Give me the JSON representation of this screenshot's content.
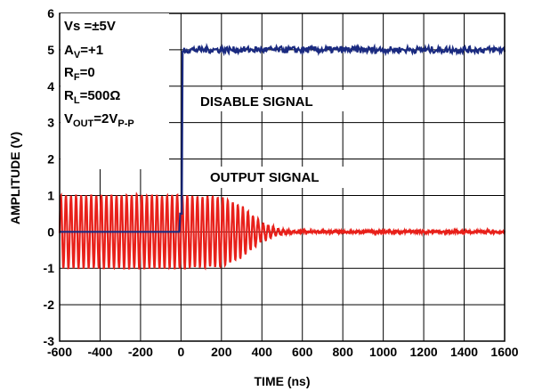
{
  "chart_data": {
    "type": "line",
    "xlabel": "TIME (ns)",
    "ylabel": "AMPLITUDE (V)",
    "xlim": [
      -600,
      1600
    ],
    "ylim": [
      -3,
      6
    ],
    "x_ticks": [
      "-600",
      "-400",
      "-200",
      "0",
      "200",
      "400",
      "600",
      "800",
      "1000",
      "1200",
      "1400",
      "1600"
    ],
    "y_ticks": [
      "-3",
      "-2",
      "-1",
      "0",
      "1",
      "2",
      "3",
      "4",
      "5",
      "6"
    ],
    "grid": true,
    "colors": {
      "disable": "#1a2a80",
      "output": "#e8201a"
    },
    "series": [
      {
        "name": "DISABLE SIGNAL",
        "x": [
          -600,
          -400,
          -200,
          -10,
          0,
          10,
          20,
          200,
          400,
          600,
          800,
          1000,
          1200,
          1400,
          1600
        ],
        "y": [
          0,
          0,
          0,
          0,
          0.5,
          4.9,
          5.0,
          5.0,
          5.0,
          5.0,
          5.0,
          5.0,
          5.0,
          5.0,
          5.0
        ]
      },
      {
        "name": "OUTPUT SIGNAL",
        "description_free": true,
        "envelope": {
          "x": [
            -600,
            -400,
            -200,
            0,
            100,
            200,
            300,
            400,
            500,
            550,
            600,
            800,
            1000,
            1200,
            1400,
            1600
          ],
          "amplitude": [
            1.0,
            1.0,
            1.0,
            1.0,
            0.97,
            0.95,
            0.7,
            0.25,
            0.05,
            0.02,
            0.0,
            0.0,
            0.0,
            0.0,
            0.0,
            0.0
          ]
        },
        "period_ns": 25
      }
    ],
    "legend": {
      "vs": {
        "main": "Vs =±5V"
      },
      "av": {
        "main": "A",
        "sub": "V",
        "rest": "=+1"
      },
      "rf": {
        "main": "R",
        "sub": "F",
        "rest": "=0"
      },
      "rl": {
        "main": "R",
        "sub": "L",
        "rest": "=500Ω"
      },
      "vout": {
        "main": "V",
        "sub": "OUT",
        "mid": "=2V",
        "sub2": "P-P"
      }
    },
    "annotations": {
      "disable": "DISABLE SIGNAL",
      "output": "OUTPUT SIGNAL"
    }
  }
}
